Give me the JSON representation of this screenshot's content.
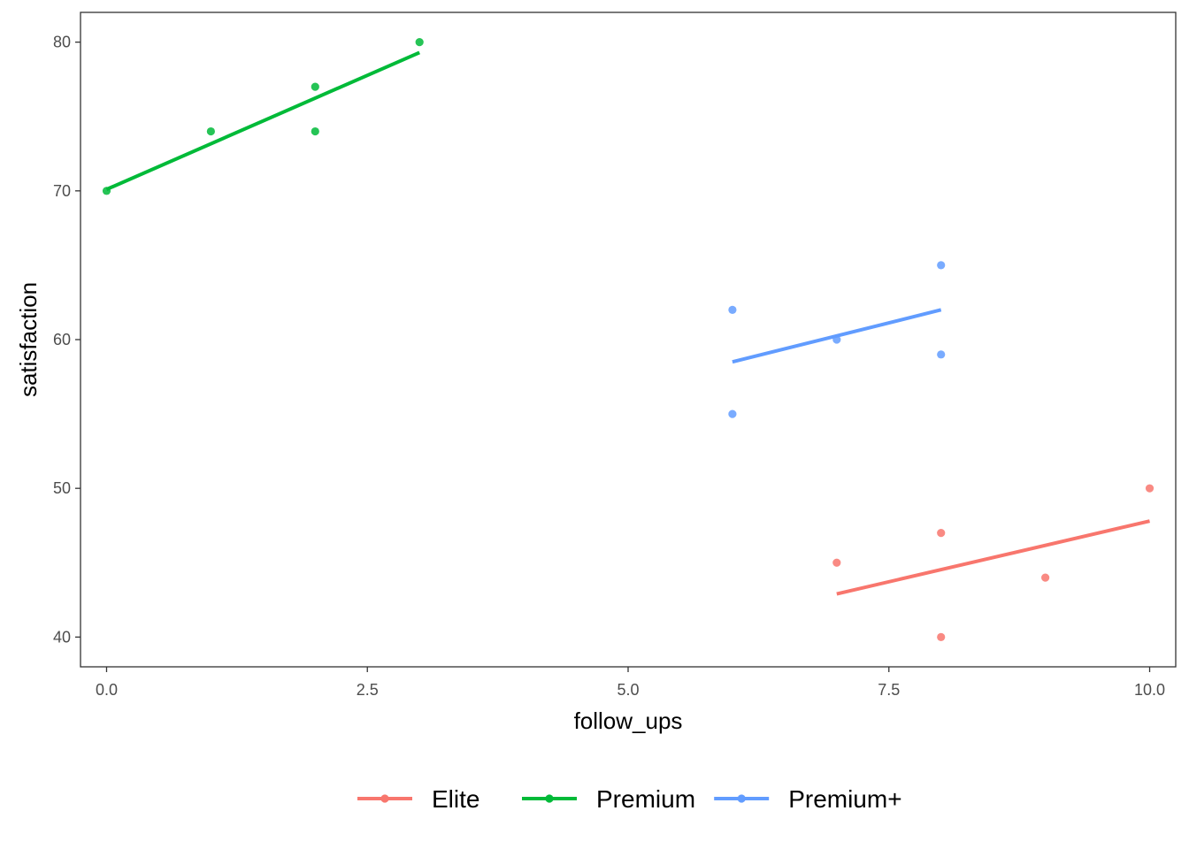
{
  "chart_data": {
    "type": "scatter",
    "title": "",
    "xlabel": "follow_ups",
    "ylabel": "satisfaction",
    "xlim": [
      -0.25,
      10.25
    ],
    "ylim": [
      38,
      82
    ],
    "x_ticks": [
      0,
      2.5,
      5,
      7.5,
      10
    ],
    "x_tick_labels": [
      "0.0",
      "2.5",
      "5.0",
      "7.5",
      "10.0"
    ],
    "y_ticks": [
      40,
      50,
      60,
      70,
      80
    ],
    "y_tick_labels": [
      "40",
      "50",
      "60",
      "70",
      "80"
    ],
    "grid": false,
    "legend_position": "bottom",
    "series": [
      {
        "name": "Elite",
        "color": "#F8766D",
        "points": [
          [
            7,
            45
          ],
          [
            8,
            47
          ],
          [
            8,
            40
          ],
          [
            9,
            44
          ],
          [
            10,
            50
          ]
        ],
        "fit_line": [
          [
            7,
            42.9
          ],
          [
            10,
            47.8
          ]
        ]
      },
      {
        "name": "Premium",
        "color": "#00BA38",
        "points": [
          [
            0,
            70
          ],
          [
            1,
            74
          ],
          [
            2,
            77
          ],
          [
            2,
            74
          ],
          [
            3,
            80
          ]
        ],
        "fit_line": [
          [
            0,
            70.1
          ],
          [
            3,
            79.3
          ]
        ]
      },
      {
        "name": "Premium+",
        "color": "#619CFF",
        "points": [
          [
            6,
            62
          ],
          [
            6,
            55
          ],
          [
            7,
            60
          ],
          [
            8,
            65
          ],
          [
            8,
            59
          ]
        ],
        "fit_line": [
          [
            6,
            58.5
          ],
          [
            8,
            62
          ]
        ]
      }
    ]
  }
}
